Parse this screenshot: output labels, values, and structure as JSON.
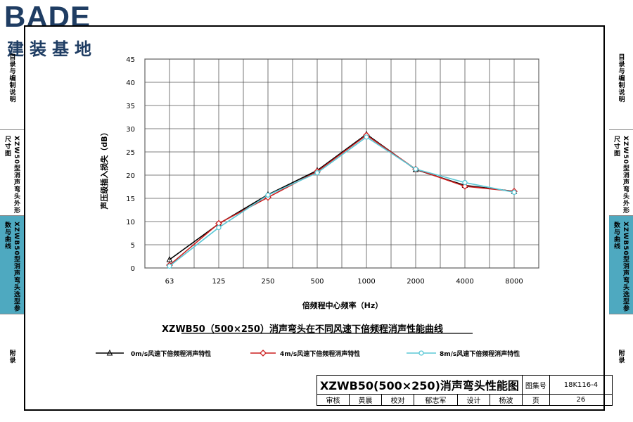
{
  "logo": {
    "brand": "BADE",
    "subtitle": "建装基地"
  },
  "left_tabs": [
    {
      "label": "目录与编制说明",
      "active": false
    },
    {
      "label": "XZW50型消声弯头外形尺寸图",
      "active": false
    },
    {
      "label": "XZWB50型消声弯头选型参数与曲线",
      "active": true
    },
    {
      "label": "附录",
      "active": false
    }
  ],
  "right_tabs": [
    {
      "label": "目录与编制说明",
      "active": false
    },
    {
      "label": "XZW50型消声弯头外形尺寸图",
      "active": false
    },
    {
      "label": "XZWB50型消声弯头选型参数与曲线",
      "active": true
    },
    {
      "label": "附录",
      "active": false
    }
  ],
  "colors": {
    "accent": "#4ea9c0",
    "series_0": "#000000",
    "series_4": "#cc1f1f",
    "series_8": "#5bc8d6"
  },
  "chart_data": {
    "type": "line",
    "title": "XZWB50（500×250）消声弯头在不同风速下倍频程消声性能曲线",
    "xlabel": "倍频程中心频率（Hz）",
    "ylabel": "声压级插入损失（dB）",
    "categories": [
      "63",
      "125",
      "250",
      "500",
      "1000",
      "2000",
      "4000",
      "8000"
    ],
    "ylim": [
      0,
      45
    ],
    "yticks": [
      0,
      5,
      10,
      15,
      20,
      25,
      30,
      35,
      40,
      45
    ],
    "grid": true,
    "legend_position": "bottom",
    "series": [
      {
        "name": "0m/s风速下倍频程消声特性",
        "marker": "triangle",
        "values": [
          1.8,
          9.5,
          15.8,
          21.0,
          28.8,
          21.2,
          17.8,
          16.5
        ]
      },
      {
        "name": "4m/s风速下倍频程消声特性",
        "marker": "diamond",
        "values": [
          0.6,
          9.6,
          15.2,
          20.8,
          28.6,
          21.3,
          17.6,
          16.5
        ]
      },
      {
        "name": "8m/s风速下倍频程消声特性",
        "marker": "circle",
        "values": [
          0.4,
          8.7,
          15.7,
          20.5,
          28.2,
          21.3,
          18.4,
          16.3
        ]
      }
    ]
  },
  "title_block": {
    "title": "XZWB50(500×250)消声弯头性能图",
    "atlas_label": "图集号",
    "atlas_no": "18K116-4",
    "review_label": "审核",
    "review_name": "黄晨",
    "check_label": "校对",
    "check_name": "郁志军",
    "design_label": "设计",
    "design_name": "杨波",
    "page_label": "页",
    "page_no": "26"
  }
}
